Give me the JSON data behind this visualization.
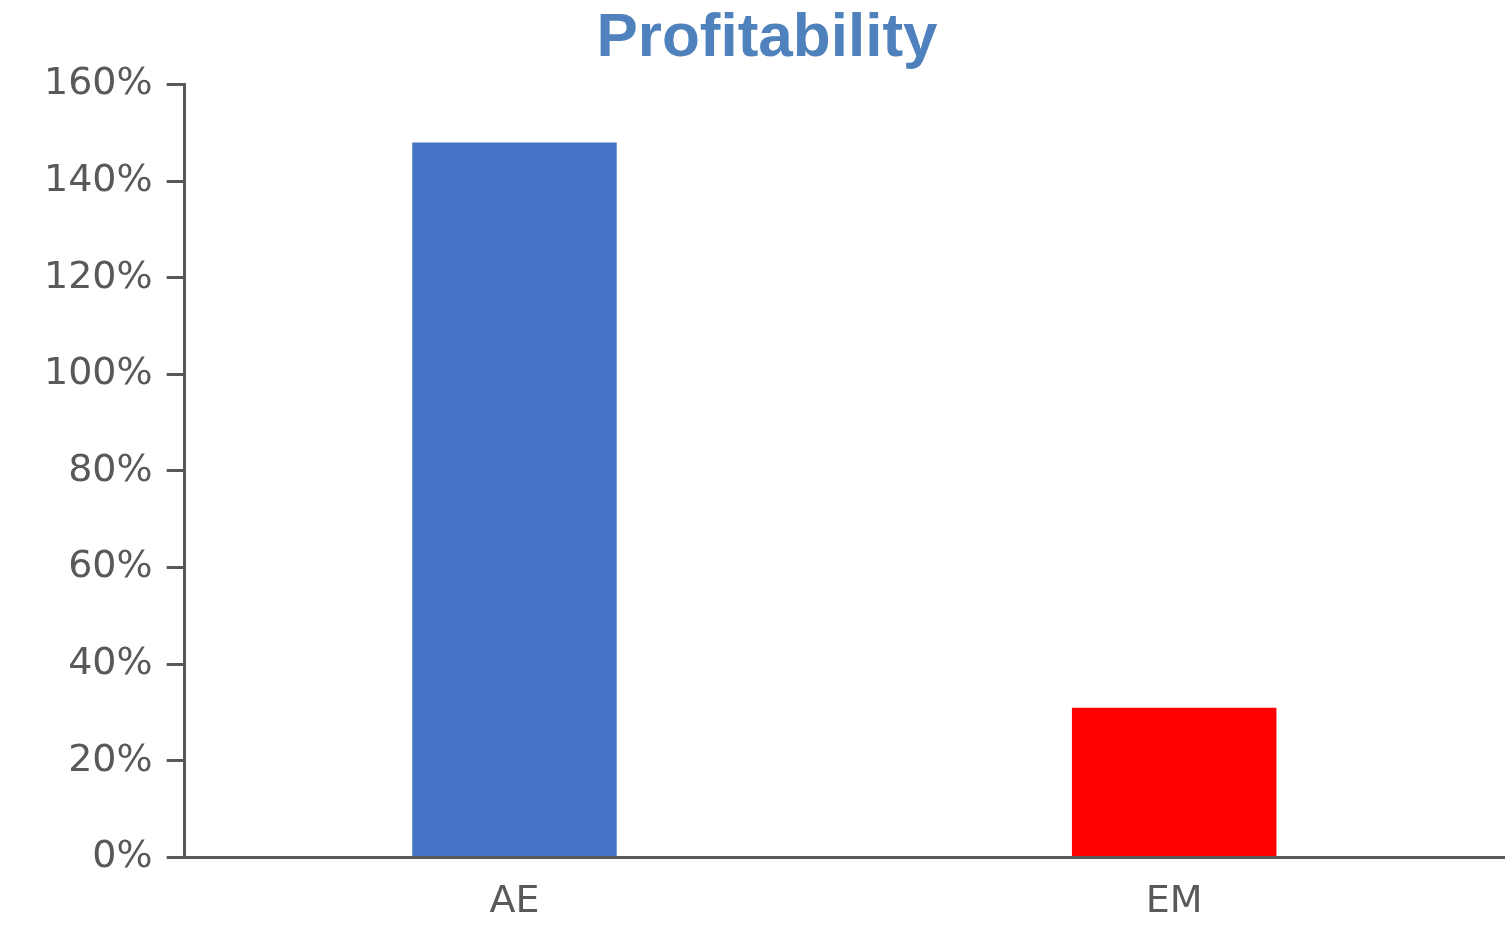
{
  "chart_data": {
    "type": "bar",
    "title": "Profitability",
    "categories": [
      "AE",
      "EM"
    ],
    "values": [
      148,
      31
    ],
    "colors": [
      "#4472c4",
      "#ff0000"
    ],
    "ylim": [
      0,
      160
    ],
    "yticks": [
      {
        "value": 0,
        "label": "0%"
      },
      {
        "value": 20,
        "label": "20%"
      },
      {
        "value": 40,
        "label": "40%"
      },
      {
        "value": 60,
        "label": "60%"
      },
      {
        "value": 80,
        "label": "80%"
      },
      {
        "value": 100,
        "label": "100%"
      },
      {
        "value": 120,
        "label": "120%"
      },
      {
        "value": 140,
        "label": "140%"
      },
      {
        "value": 160,
        "label": "160%"
      }
    ],
    "grid": false,
    "legend": false
  }
}
